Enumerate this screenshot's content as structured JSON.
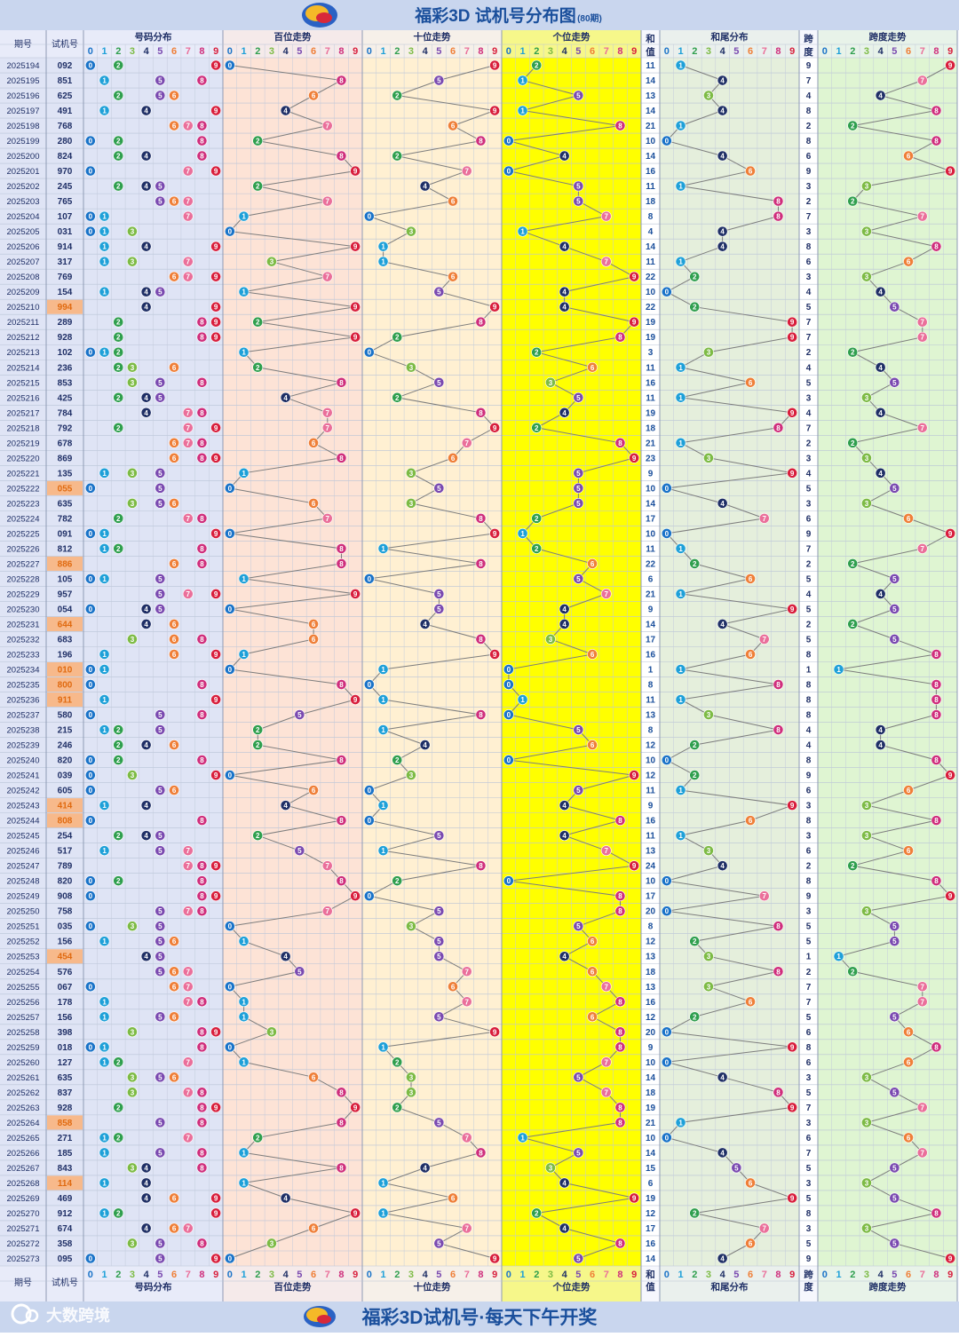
{
  "header": {
    "title": "福彩3D 试机号分布图",
    "period_note": "(80期)"
  },
  "footer": {
    "slogan": "福彩3D试机号·每天下午开奖",
    "watermark": "大数跨境"
  },
  "labels": {
    "issue": "期号",
    "trial": "试机号",
    "num_dist": "号码分布",
    "hundreds": "百位走势",
    "tens": "十位走势",
    "units": "个位走势",
    "sum_top": "和",
    "sum_bottom": "值",
    "sum_tail": "和尾分布",
    "span_top": "跨",
    "span_bottom": "度",
    "span_trend": "跨度走势"
  },
  "digits": [
    "0",
    "1",
    "2",
    "3",
    "4",
    "5",
    "6",
    "7",
    "8",
    "9"
  ],
  "colors": {
    "header_bg": "#c9d6ee",
    "title": "#1a4f9c",
    "footer_title": "#1a4f9c",
    "highlight_issue": "#f7b98b",
    "highlight_text": "#e06a10",
    "bg_dist": "#dfe4f5",
    "bg_hundreds": "#fde3d6",
    "bg_tens": "#fff0d2",
    "bg_units": "#ffff00",
    "bg_sum": "#ffffff",
    "bg_tail": "#e5efdc",
    "bg_span": "#dff5d2",
    "digit_colors": [
      "#1a73c8",
      "#1ea0d8",
      "#2f9f4e",
      "#7dbb45",
      "#1f2f66",
      "#7a4ab0",
      "#ef7f38",
      "#ea6f9a",
      "#cf2e7c",
      "#d81e3c"
    ]
  },
  "chart_data": {
    "type": "table",
    "title": "福彩3D 试机号分布图",
    "periods": [
      "2025194",
      "2025195",
      "2025196",
      "2025197",
      "2025198",
      "2025199",
      "2025200",
      "2025201",
      "2025202",
      "2025203",
      "2025204",
      "2025205",
      "2025206",
      "2025207",
      "2025208",
      "2025209",
      "2025210",
      "2025211",
      "2025212",
      "2025213",
      "2025214",
      "2025215",
      "2025216",
      "2025217",
      "2025218",
      "2025219",
      "2025220",
      "2025221",
      "2025222",
      "2025223",
      "2025224",
      "2025225",
      "2025226",
      "2025227",
      "2025228",
      "2025229",
      "2025230",
      "2025231",
      "2025232",
      "2025233",
      "2025234",
      "2025235",
      "2025236",
      "2025237",
      "2025238",
      "2025239",
      "2025240",
      "2025241",
      "2025242",
      "2025243",
      "2025244",
      "2025245",
      "2025246",
      "2025247",
      "2025248",
      "2025249",
      "2025250",
      "2025251",
      "2025252",
      "2025253",
      "2025254",
      "2025255",
      "2025256",
      "2025257",
      "2025258",
      "2025259",
      "2025260",
      "2025261",
      "2025262",
      "2025263",
      "2025264",
      "2025265",
      "2025266",
      "2025267",
      "2025268",
      "2025269",
      "2025270",
      "2025271",
      "2025272",
      "2025273"
    ],
    "trial_numbers": [
      "092",
      "851",
      "625",
      "491",
      "768",
      "280",
      "824",
      "970",
      "245",
      "765",
      "107",
      "031",
      "914",
      "317",
      "769",
      "154",
      "994",
      "289",
      "928",
      "102",
      "236",
      "853",
      "425",
      "784",
      "792",
      "678",
      "869",
      "135",
      "055",
      "635",
      "782",
      "091",
      "812",
      "886",
      "105",
      "957",
      "054",
      "644",
      "683",
      "196",
      "010",
      "800",
      "911",
      "580",
      "215",
      "246",
      "820",
      "039",
      "605",
      "414",
      "808",
      "254",
      "517",
      "789",
      "820",
      "908",
      "758",
      "035",
      "156",
      "454",
      "576",
      "067",
      "178",
      "156",
      "398",
      "018",
      "127",
      "635",
      "837",
      "928",
      "858",
      "271",
      "185",
      "843",
      "114",
      "469",
      "912",
      "674",
      "358",
      "095"
    ],
    "sums": [
      11,
      14,
      13,
      14,
      21,
      10,
      14,
      16,
      11,
      18,
      8,
      4,
      14,
      11,
      22,
      10,
      22,
      19,
      19,
      3,
      11,
      16,
      11,
      19,
      18,
      21,
      23,
      9,
      10,
      14,
      17,
      10,
      11,
      22,
      6,
      21,
      9,
      14,
      17,
      16,
      1,
      8,
      11,
      13,
      8,
      12,
      10,
      12,
      11,
      9,
      16,
      11,
      13,
      24,
      10,
      17,
      20,
      8,
      12,
      13,
      18,
      13,
      16,
      12,
      20,
      9,
      10,
      14,
      18,
      19,
      21,
      10,
      14,
      15,
      6,
      19,
      12,
      17,
      16,
      14
    ],
    "spans": [
      9,
      7,
      4,
      8,
      2,
      8,
      6,
      9,
      3,
      2,
      7,
      3,
      8,
      6,
      3,
      4,
      5,
      7,
      7,
      2,
      4,
      5,
      3,
      4,
      7,
      2,
      3,
      4,
      5,
      3,
      6,
      9,
      7,
      2,
      5,
      4,
      5,
      2,
      5,
      8,
      1,
      8,
      8,
      8,
      4,
      4,
      8,
      9,
      6,
      3,
      8,
      3,
      6,
      2,
      8,
      9,
      3,
      5,
      5,
      1,
      2,
      7,
      7,
      5,
      6,
      8,
      6,
      3,
      5,
      7,
      3,
      6,
      7,
      5,
      3,
      5,
      8,
      3,
      5,
      9
    ]
  }
}
